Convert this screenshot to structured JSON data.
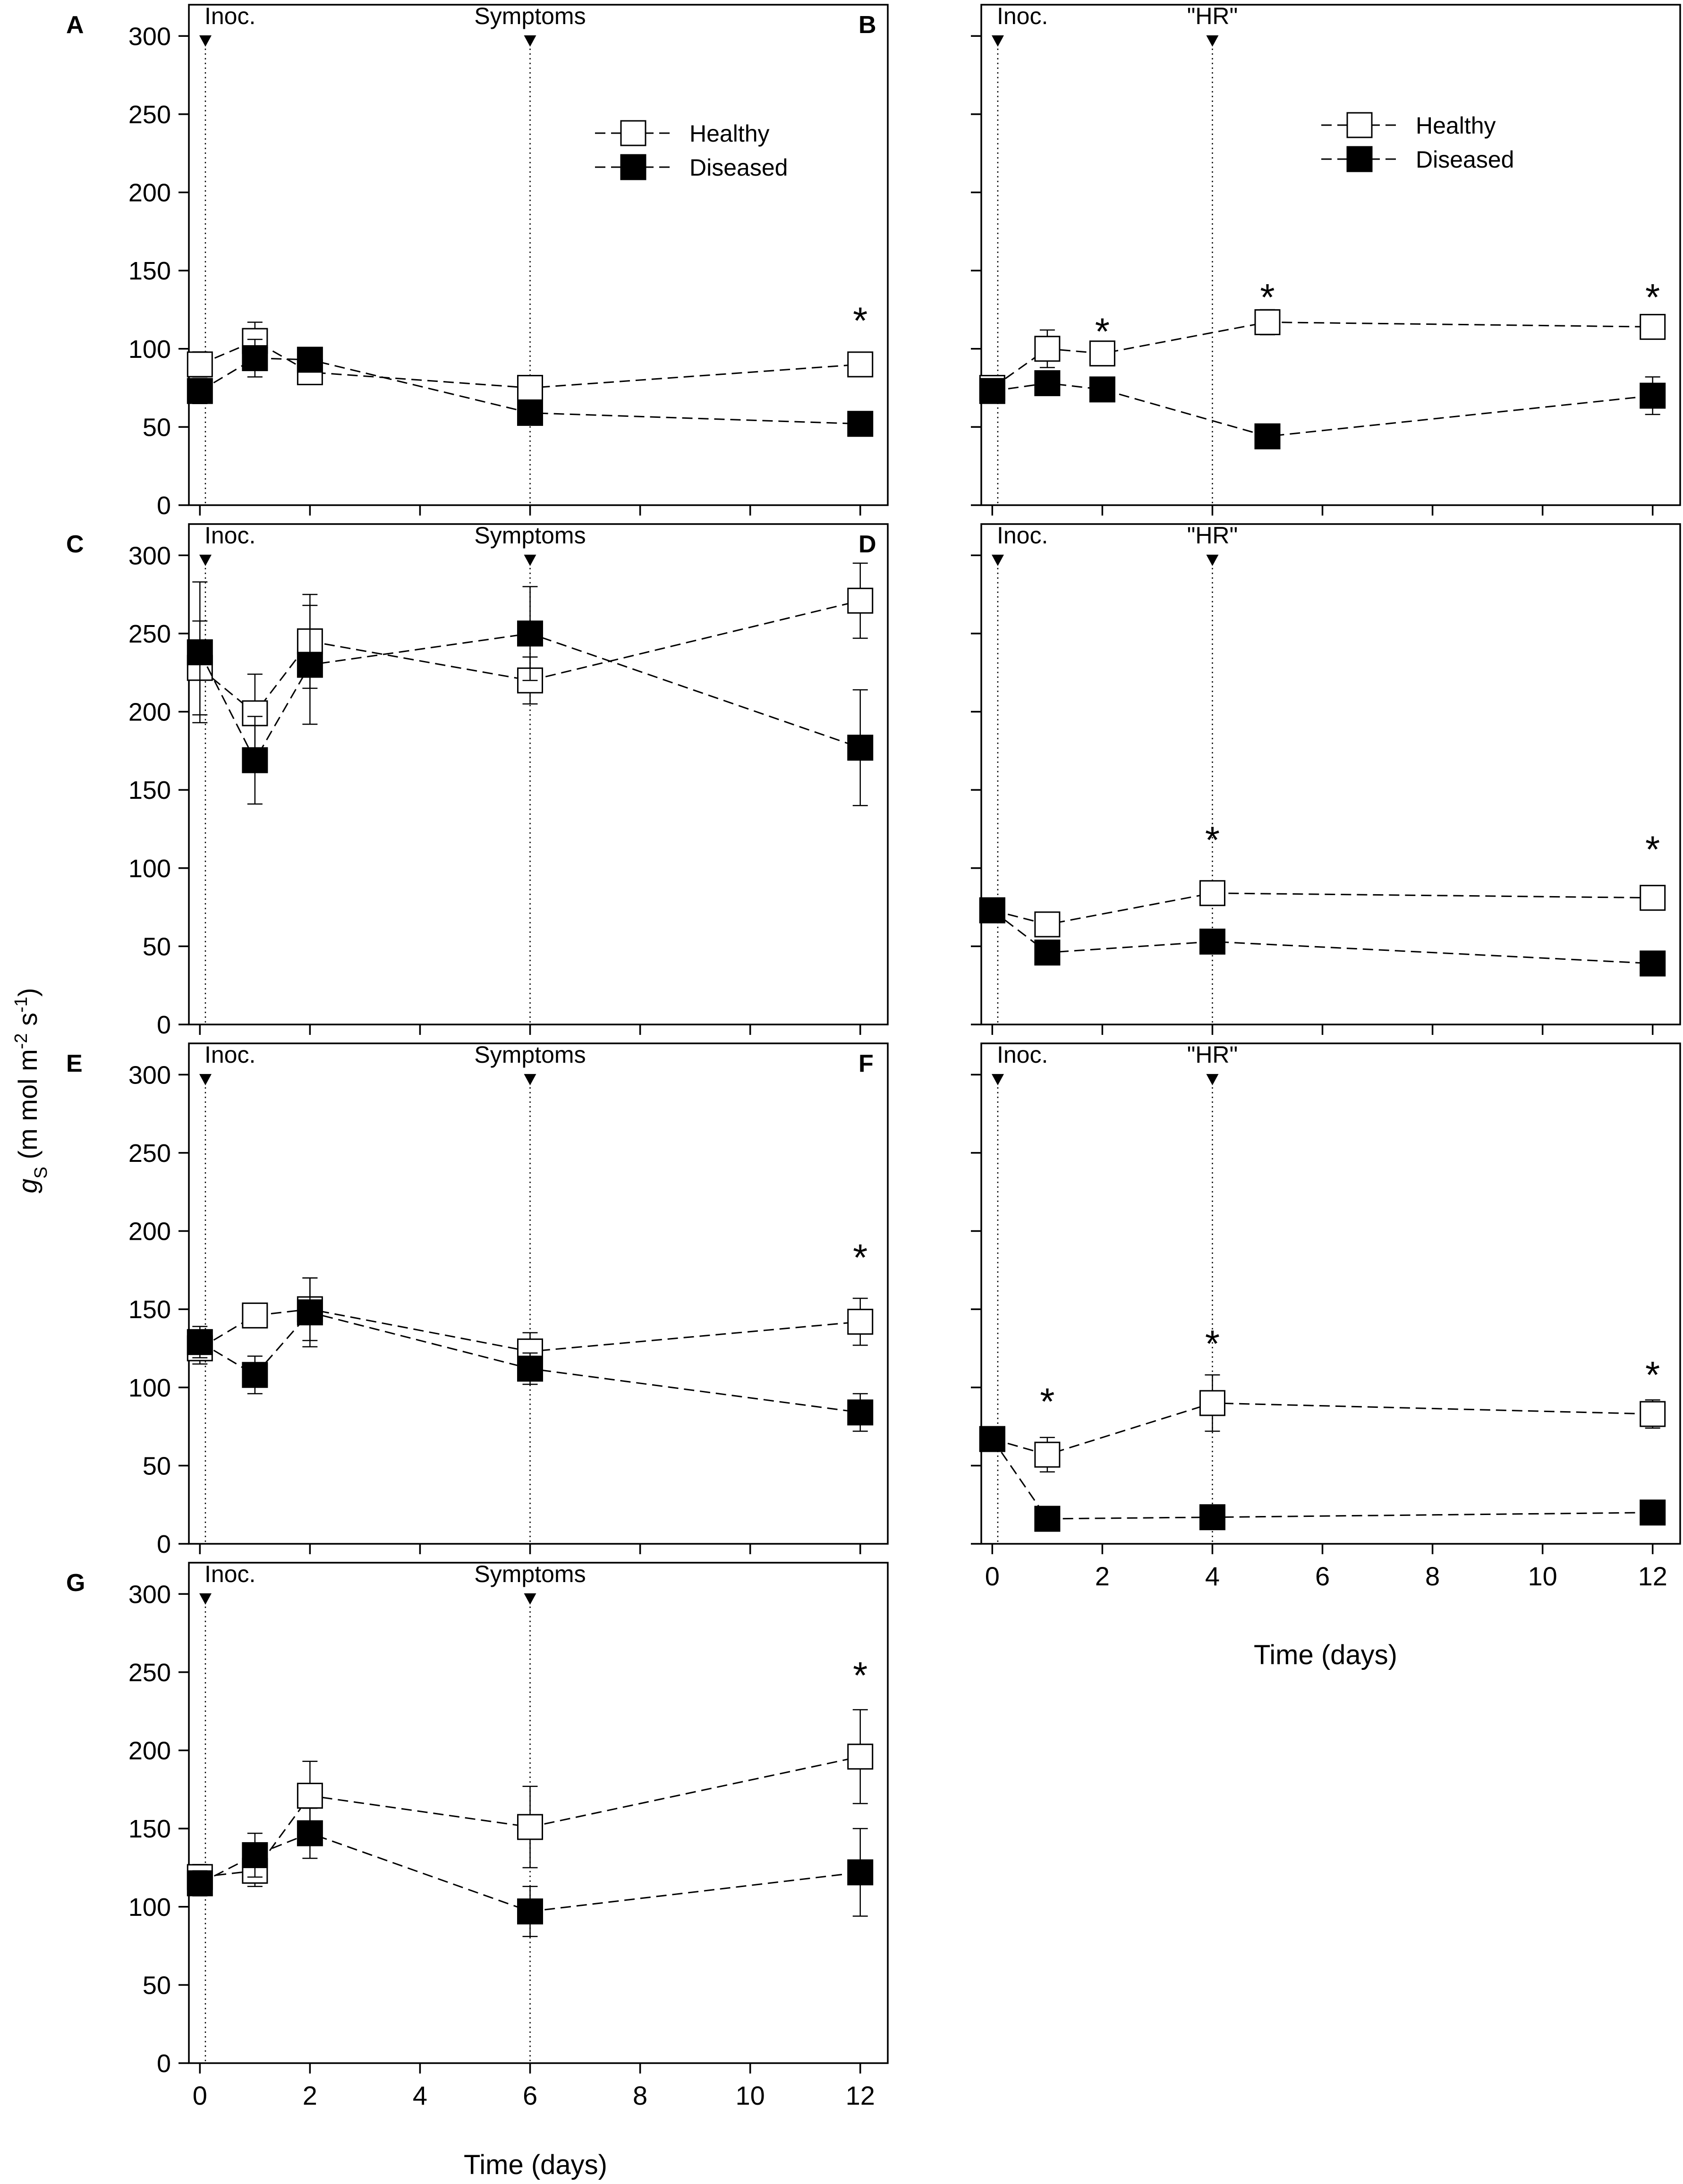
{
  "figure": {
    "ylabel_symbol": "g",
    "ylabel_sub": "S",
    "ylabel_unit_a": " (m mol m",
    "ylabel_exp1": "-2",
    "ylabel_unit_b": " s",
    "ylabel_exp2": "-1",
    "ylabel_close": ")",
    "xlabel": "Time (days)"
  },
  "colors": {
    "axis": "#000000",
    "healthy_fill": "#ffffff",
    "diseased_fill": "#000000",
    "background": "#ffffff"
  },
  "chart_data": [
    {
      "panel": "A",
      "type": "line",
      "xlim": [
        -0.2,
        12.5
      ],
      "ylim": [
        0,
        320
      ],
      "yticks": [
        0,
        50,
        100,
        150,
        200,
        250,
        300
      ],
      "show_ytick_labels": true,
      "xticks": [
        0,
        2,
        4,
        6,
        8,
        10,
        12
      ],
      "show_xtick_labels": false,
      "events": [
        {
          "x": 0.1,
          "label": "Inoc."
        },
        {
          "x": 6,
          "label": "Symptoms"
        }
      ],
      "legend": {
        "entries": [
          "Healthy",
          "Diseased"
        ],
        "position": "top-right"
      },
      "series": [
        {
          "name": "Healthy",
          "marker": "open-square",
          "x": [
            0,
            1,
            2,
            6,
            12
          ],
          "y": [
            90,
            105,
            85,
            75,
            90
          ],
          "err": [
            8,
            12,
            5,
            5,
            5
          ]
        },
        {
          "name": "Diseased",
          "marker": "filled-square",
          "x": [
            0,
            1,
            2,
            6,
            12
          ],
          "y": [
            73,
            94,
            93,
            59,
            52
          ],
          "err": [
            8,
            12,
            5,
            5,
            4
          ]
        }
      ],
      "significance": [
        {
          "x": 12,
          "y": 120,
          "label": "*"
        }
      ]
    },
    {
      "panel": "B",
      "type": "line",
      "xlim": [
        -0.2,
        12.5
      ],
      "ylim": [
        0,
        320
      ],
      "yticks": [
        0,
        50,
        100,
        150,
        200,
        250,
        300
      ],
      "show_ytick_labels": false,
      "xticks": [
        0,
        2,
        4,
        6,
        8,
        10,
        12
      ],
      "show_xtick_labels": false,
      "events": [
        {
          "x": 0.1,
          "label": "Inoc."
        },
        {
          "x": 4,
          "label": "\"HR\""
        }
      ],
      "legend": {
        "entries": [
          "Healthy",
          "Diseased"
        ],
        "position": "top-right"
      },
      "series": [
        {
          "name": "Healthy",
          "marker": "open-square",
          "x": [
            0,
            1,
            2,
            5,
            12
          ],
          "y": [
            75,
            100,
            97,
            117,
            114
          ],
          "err": [
            5,
            12,
            5,
            8,
            5
          ]
        },
        {
          "name": "Diseased",
          "marker": "filled-square",
          "x": [
            0,
            1,
            2,
            5,
            12
          ],
          "y": [
            73,
            78,
            74,
            44,
            70
          ],
          "err": [
            5,
            5,
            5,
            4,
            12
          ]
        }
      ],
      "significance": [
        {
          "x": 2,
          "y": 113,
          "label": "*"
        },
        {
          "x": 5,
          "y": 135,
          "label": "*"
        },
        {
          "x": 12,
          "y": 135,
          "label": "*"
        }
      ]
    },
    {
      "panel": "C",
      "type": "line",
      "xlim": [
        -0.2,
        12.5
      ],
      "ylim": [
        0,
        320
      ],
      "yticks": [
        0,
        50,
        100,
        150,
        200,
        250,
        300
      ],
      "show_ytick_labels": true,
      "xticks": [
        0,
        2,
        4,
        6,
        8,
        10,
        12
      ],
      "show_xtick_labels": false,
      "events": [
        {
          "x": 0.1,
          "label": "Inoc."
        },
        {
          "x": 6,
          "label": "Symptoms"
        }
      ],
      "series": [
        {
          "name": "Healthy",
          "marker": "open-square",
          "x": [
            0,
            1,
            2,
            6,
            12
          ],
          "y": [
            228,
            199,
            245,
            220,
            271
          ],
          "err": [
            30,
            25,
            30,
            15,
            24
          ]
        },
        {
          "name": "Diseased",
          "marker": "filled-square",
          "x": [
            0,
            1,
            2,
            6,
            12
          ],
          "y": [
            238,
            169,
            230,
            250,
            177
          ],
          "err": [
            45,
            28,
            38,
            30,
            37
          ]
        }
      ],
      "significance": []
    },
    {
      "panel": "D",
      "type": "line",
      "xlim": [
        -0.2,
        12.5
      ],
      "ylim": [
        0,
        320
      ],
      "yticks": [
        0,
        50,
        100,
        150,
        200,
        250,
        300
      ],
      "show_ytick_labels": false,
      "xticks": [
        0,
        2,
        4,
        6,
        8,
        10,
        12
      ],
      "show_xtick_labels": false,
      "events": [
        {
          "x": 0.1,
          "label": "Inoc."
        },
        {
          "x": 4,
          "label": "\"HR\""
        }
      ],
      "series": [
        {
          "name": "Healthy",
          "marker": "open-square",
          "x": [
            0,
            1,
            4,
            12
          ],
          "y": [
            73,
            64,
            84,
            81
          ],
          "err": [
            4,
            4,
            5,
            4
          ]
        },
        {
          "name": "Diseased",
          "marker": "filled-square",
          "x": [
            0,
            1,
            4,
            12
          ],
          "y": [
            73,
            46,
            53,
            39
          ],
          "err": [
            4,
            4,
            4,
            4
          ]
        }
      ],
      "significance": [
        {
          "x": 4,
          "y": 120,
          "label": "*"
        },
        {
          "x": 12,
          "y": 114,
          "label": "*"
        }
      ]
    },
    {
      "panel": "E",
      "type": "line",
      "xlim": [
        -0.2,
        12.5
      ],
      "ylim": [
        0,
        320
      ],
      "yticks": [
        0,
        50,
        100,
        150,
        200,
        250,
        300
      ],
      "show_ytick_labels": true,
      "xticks": [
        0,
        2,
        4,
        6,
        8,
        10,
        12
      ],
      "show_xtick_labels": false,
      "events": [
        {
          "x": 0.1,
          "label": "Inoc."
        },
        {
          "x": 6,
          "label": "Symptoms"
        }
      ],
      "series": [
        {
          "name": "Healthy",
          "marker": "open-square",
          "x": [
            0,
            1,
            2,
            6,
            12
          ],
          "y": [
            125,
            146,
            150,
            123,
            142
          ],
          "err": [
            10,
            6,
            20,
            12,
            15
          ]
        },
        {
          "name": "Diseased",
          "marker": "filled-square",
          "x": [
            0,
            1,
            2,
            6,
            12
          ],
          "y": [
            129,
            108,
            148,
            112,
            84
          ],
          "err": [
            10,
            12,
            22,
            10,
            12
          ]
        }
      ],
      "significance": [
        {
          "x": 12,
          "y": 185,
          "label": "*"
        }
      ]
    },
    {
      "panel": "F",
      "type": "line",
      "xlim": [
        -0.2,
        12.5
      ],
      "ylim": [
        0,
        320
      ],
      "yticks": [
        0,
        50,
        100,
        150,
        200,
        250,
        300
      ],
      "show_ytick_labels": false,
      "xticks": [
        0,
        2,
        4,
        6,
        8,
        10,
        12
      ],
      "show_xtick_labels": true,
      "events": [
        {
          "x": 0.1,
          "label": "Inoc."
        },
        {
          "x": 4,
          "label": "\"HR\""
        }
      ],
      "series": [
        {
          "name": "Healthy",
          "marker": "open-square",
          "x": [
            0,
            1,
            4,
            12
          ],
          "y": [
            67,
            57,
            90,
            83
          ],
          "err": [
            5,
            11,
            18,
            9
          ]
        },
        {
          "name": "Diseased",
          "marker": "filled-square",
          "x": [
            0,
            1,
            4,
            12
          ],
          "y": [
            67,
            16,
            17,
            20
          ],
          "err": [
            5,
            3,
            3,
            3
          ]
        }
      ],
      "significance": [
        {
          "x": 1,
          "y": 93,
          "label": "*"
        },
        {
          "x": 4,
          "y": 130,
          "label": "*"
        },
        {
          "x": 12,
          "y": 110,
          "label": "*"
        }
      ]
    },
    {
      "panel": "G",
      "type": "line",
      "xlim": [
        -0.2,
        12.5
      ],
      "ylim": [
        0,
        320
      ],
      "yticks": [
        0,
        50,
        100,
        150,
        200,
        250,
        300
      ],
      "show_ytick_labels": true,
      "xticks": [
        0,
        2,
        4,
        6,
        8,
        10,
        12
      ],
      "show_xtick_labels": true,
      "events": [
        {
          "x": 0.1,
          "label": "Inoc."
        },
        {
          "x": 6,
          "label": "Symptoms"
        }
      ],
      "series": [
        {
          "name": "Healthy",
          "marker": "open-square",
          "x": [
            0,
            1,
            2,
            6,
            12
          ],
          "y": [
            119,
            123,
            171,
            151,
            196
          ],
          "err": [
            8,
            10,
            22,
            26,
            30
          ]
        },
        {
          "name": "Diseased",
          "marker": "filled-square",
          "x": [
            0,
            1,
            2,
            6,
            12
          ],
          "y": [
            115,
            133,
            147,
            97,
            122
          ],
          "err": [
            8,
            14,
            16,
            16,
            28
          ]
        }
      ],
      "significance": [
        {
          "x": 12,
          "y": 250,
          "label": "*"
        }
      ]
    }
  ]
}
